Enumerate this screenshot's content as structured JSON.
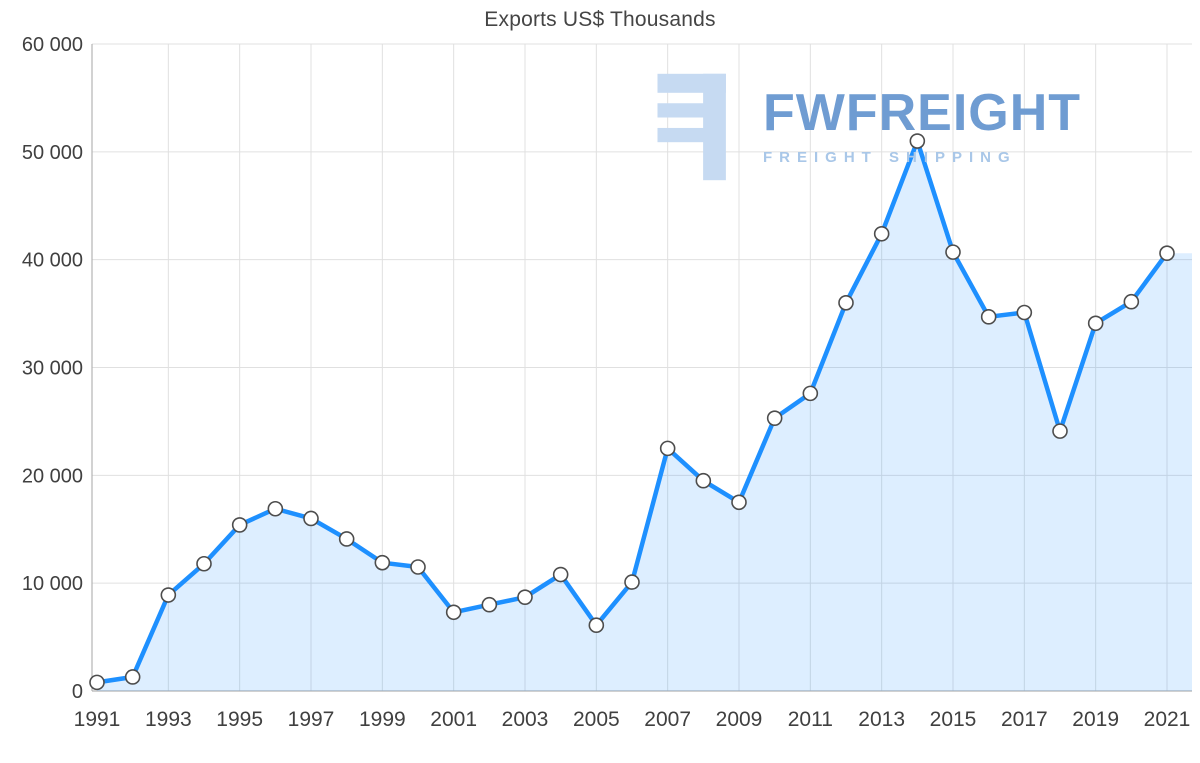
{
  "colors": {
    "brand": "#6f9cd2",
    "brand-light": "#a9c7e8",
    "logo": "#c6daf2",
    "title": "#454545"
  },
  "watermark": {
    "brand": "FWFREIGHT",
    "tagline": "FREIGHT SHIPPING",
    "logo_icon": "fwfreight-f-monogram"
  },
  "chart_data": {
    "type": "area",
    "title": "Exports US$ Thousands",
    "xlabel": "",
    "ylabel": "",
    "x": [
      1991,
      1992,
      1993,
      1994,
      1995,
      1996,
      1997,
      1998,
      1999,
      2000,
      2001,
      2002,
      2003,
      2004,
      2005,
      2006,
      2007,
      2008,
      2009,
      2010,
      2011,
      2012,
      2013,
      2014,
      2015,
      2016,
      2017,
      2018,
      2019,
      2020,
      2021
    ],
    "values": [
      800,
      1300,
      8900,
      11800,
      15400,
      16900,
      16000,
      14100,
      11900,
      11500,
      7300,
      8000,
      8700,
      10800,
      6100,
      10100,
      22500,
      19500,
      17500,
      25300,
      27600,
      36000,
      42400,
      51000,
      40700,
      34700,
      35100,
      24100,
      34100,
      36100,
      40600
    ],
    "ylim": [
      0,
      60000
    ],
    "yticks": [
      {
        "value": 0,
        "label": "0"
      },
      {
        "value": 10000,
        "label": "10 000"
      },
      {
        "value": 20000,
        "label": "20 000"
      },
      {
        "value": 30000,
        "label": "30 000"
      },
      {
        "value": 40000,
        "label": "40 000"
      },
      {
        "value": 50000,
        "label": "50 000"
      },
      {
        "value": 60000,
        "label": "60 000"
      }
    ],
    "xticks": [
      "1991",
      "1993",
      "1995",
      "1997",
      "1999",
      "2001",
      "2003",
      "2005",
      "2007",
      "2009",
      "2011",
      "2013",
      "2015",
      "2017",
      "2019",
      "2021"
    ],
    "grid": true,
    "legend": "none",
    "marker": "circle-white-outline",
    "colors": {
      "line": "#1e90ff",
      "fill": "#1e90ff",
      "fill_opacity": 0.15,
      "grid": "#e0e0e0",
      "axis": "#b3b3b3",
      "marker_fill": "#ffffff",
      "marker_stroke": "#4d4d4d",
      "label": "#404040"
    }
  }
}
